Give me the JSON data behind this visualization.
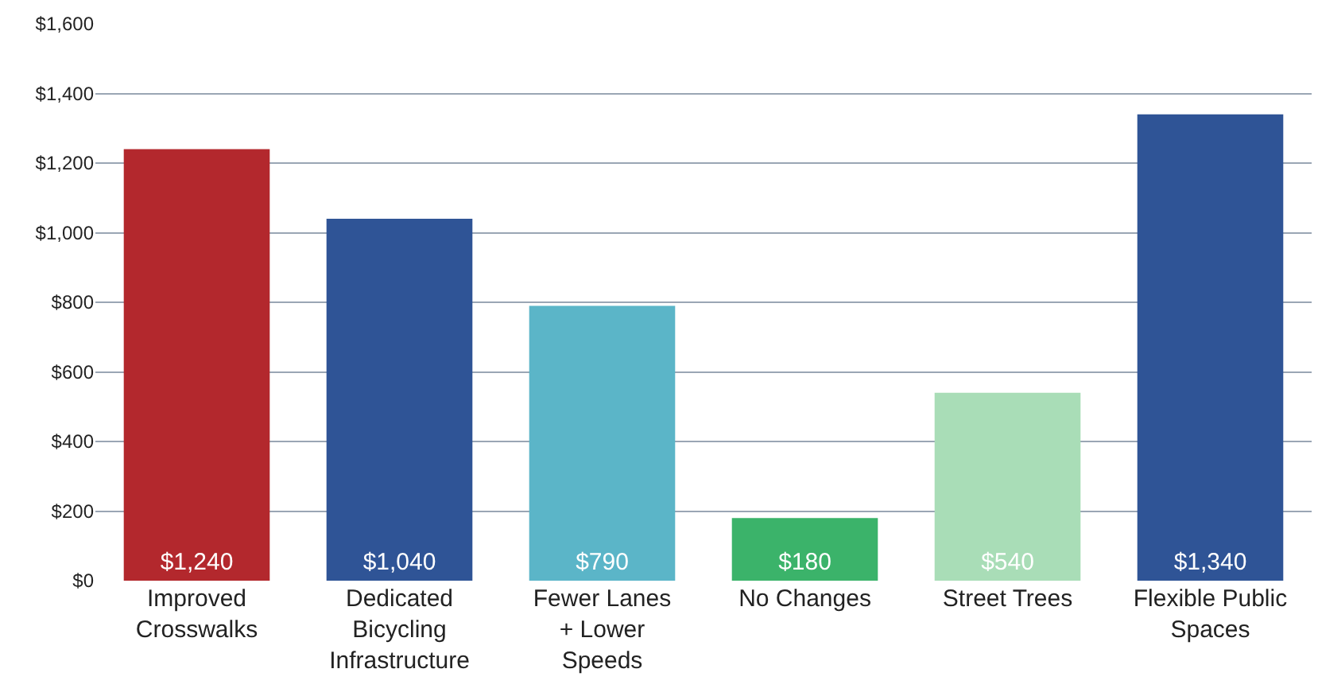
{
  "chart_data": {
    "type": "bar",
    "categories": [
      "Improved\nCrosswalks",
      "Dedicated\nBicycling\nInfrastructure",
      "Fewer Lanes\n+ Lower\nSpeeds",
      "No Changes",
      "Street Trees",
      "Flexible Public\nSpaces"
    ],
    "values": [
      1240,
      1040,
      790,
      180,
      540,
      1340
    ],
    "colors": [
      "#b3282d",
      "#2f5496",
      "#5bb5c8",
      "#3bb36a",
      "#a9ddb7",
      "#2f5496"
    ],
    "value_labels": [
      "$1,240",
      "$1,040",
      "$790",
      "$180",
      "$540",
      "$1,340"
    ],
    "ylim": [
      0,
      1600
    ],
    "yticks": [
      {
        "value": 0,
        "label": "$0"
      },
      {
        "value": 200,
        "label": "$200"
      },
      {
        "value": 400,
        "label": "$400"
      },
      {
        "value": 600,
        "label": "$600"
      },
      {
        "value": 800,
        "label": "$800"
      },
      {
        "value": 1000,
        "label": "$1,000"
      },
      {
        "value": 1200,
        "label": "$1,200"
      },
      {
        "value": 1400,
        "label": "$1,400"
      },
      {
        "value": 1600,
        "label": "$1,600"
      }
    ],
    "grid": "y",
    "legend": false
  }
}
